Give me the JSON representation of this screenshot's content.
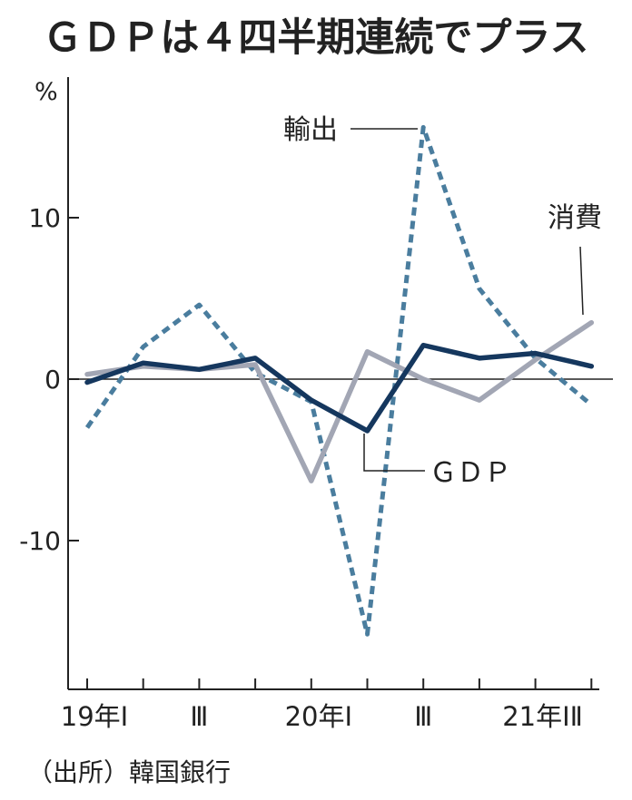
{
  "chart_data": {
    "type": "line",
    "title": "ＧＤＰは４四半期連続でプラス",
    "ylabel": "%",
    "ylim": [
      -19,
      19
    ],
    "yticks": [
      {
        "value": 10,
        "label": "10"
      },
      {
        "value": 0,
        "label": "0"
      },
      {
        "value": -10,
        "label": "-10"
      }
    ],
    "x": [
      "19Q1",
      "19Q2",
      "19Q3",
      "19Q4",
      "20Q1",
      "20Q2",
      "20Q3",
      "20Q4",
      "21Q1",
      "21Q2"
    ],
    "xtick_labels": [
      {
        "index": 0,
        "label": "19年Ⅰ"
      },
      {
        "index": 2,
        "label": "Ⅲ"
      },
      {
        "index": 4,
        "label": "20年Ⅰ"
      },
      {
        "index": 6,
        "label": "Ⅲ"
      },
      {
        "index": 8,
        "label": "21年ⅠⅡ"
      }
    ],
    "series": [
      {
        "name": "ＧＤＰ",
        "color": "#15375e",
        "style": "solid",
        "values": [
          -0.2,
          1.0,
          0.6,
          1.3,
          -1.3,
          -3.2,
          2.1,
          1.3,
          1.6,
          0.8
        ]
      },
      {
        "name": "消費",
        "color": "#a2a6b4",
        "style": "solid",
        "values": [
          0.3,
          0.8,
          0.6,
          0.9,
          -6.3,
          1.7,
          0.0,
          -1.3,
          1.2,
          3.5
        ]
      },
      {
        "name": "輸出",
        "color": "#4a7d9e",
        "style": "dashed",
        "values": [
          -3.0,
          2.0,
          4.6,
          0.4,
          -1.4,
          -15.8,
          15.6,
          5.6,
          1.3,
          -1.6
        ]
      }
    ],
    "annotations": [
      {
        "series": "輸出",
        "text": "輸出"
      },
      {
        "series": "消費",
        "text": "消費"
      },
      {
        "series": "ＧＤＰ",
        "text": "ＧＤＰ"
      }
    ],
    "grid": false,
    "source": "（出所）韓国銀行"
  }
}
